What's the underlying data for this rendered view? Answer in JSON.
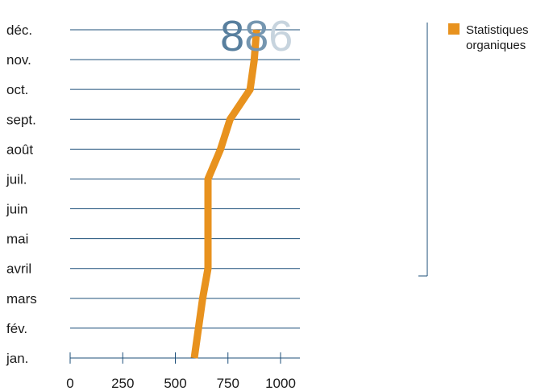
{
  "chart_data": {
    "type": "line",
    "orientation": "horizontal",
    "categories": [
      "jan.",
      "fév.",
      "mars",
      "avril",
      "mai",
      "juin",
      "juil.",
      "août",
      "sept.",
      "oct.",
      "nov.",
      "déc."
    ],
    "series": [
      {
        "name": "Statistiques organiques",
        "color": "#e8921e",
        "values": [
          590,
          610,
          630,
          655,
          655,
          655,
          655,
          715,
          760,
          855,
          875,
          886
        ]
      }
    ],
    "value_label": {
      "text": "886",
      "digit_colors": [
        "#587f9e",
        "#7596b0",
        "#c7d4de"
      ]
    },
    "xlim": [
      0,
      1000
    ],
    "xticks": [
      "0",
      "250",
      "500",
      "750",
      "1000"
    ],
    "grid": "horizontal",
    "gridline_color": "#1d4f7a",
    "legend": {
      "position": "top-right",
      "lines": [
        "Statistiques",
        "organiques"
      ]
    }
  }
}
